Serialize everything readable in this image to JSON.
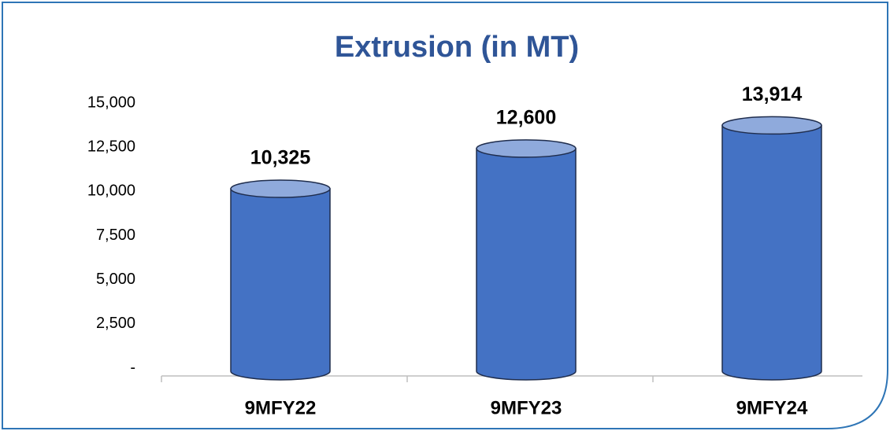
{
  "chart_data": {
    "type": "cylinder",
    "title": "Extrusion (in MT)",
    "categories": [
      "9MFY22",
      "9MFY23",
      "9MFY24"
    ],
    "values": [
      10325,
      12600,
      13914
    ],
    "value_labels": [
      "10,325",
      "12,600",
      "13,914"
    ],
    "color": "#4472c4",
    "top_color": "#8faadc",
    "ylim": [
      0,
      15000
    ],
    "yticks": [
      {
        "value": 0,
        "label": "-"
      },
      {
        "value": 2500,
        "label": "2,500"
      },
      {
        "value": 5000,
        "label": "5,000"
      },
      {
        "value": 7500,
        "label": "7,500"
      },
      {
        "value": 10000,
        "label": "10,000"
      },
      {
        "value": 12500,
        "label": "12,500"
      },
      {
        "value": 15000,
        "label": "15,000"
      }
    ],
    "grid": false
  }
}
